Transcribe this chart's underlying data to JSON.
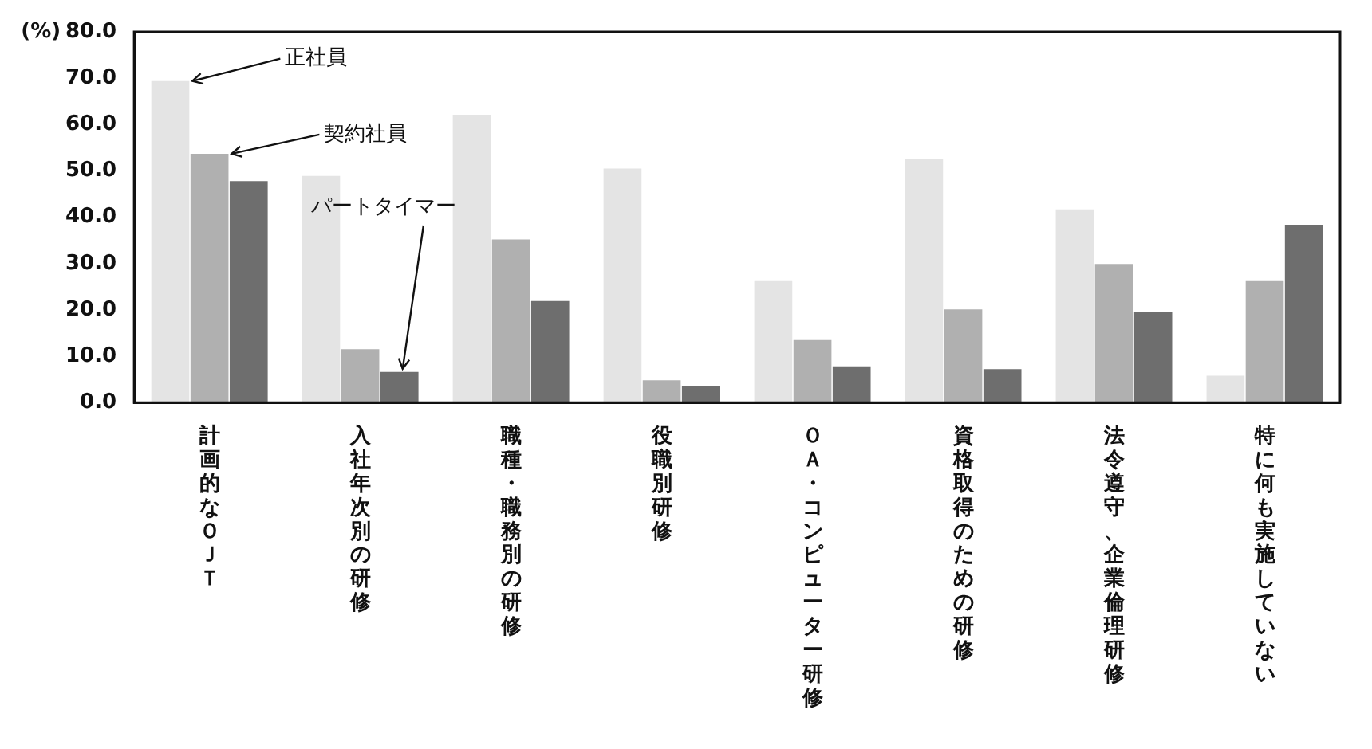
{
  "chart_data": {
    "type": "bar",
    "ylabel": "(%)",
    "categories": [
      "計画的なＯＪＴ",
      "入社年次別の研修",
      "職種・職務別の研修",
      "役職別研修",
      "ＯＡ・コンピューター研修",
      "資格取得のための研修",
      "法令遵守、企業倫理研修",
      "特に何も実施していない"
    ],
    "series": [
      {
        "name": "正社員",
        "color": "#e4e4e4",
        "values": [
          69.4,
          48.9,
          62.1,
          50.5,
          26.2,
          52.5,
          41.7,
          5.8
        ]
      },
      {
        "name": "契約社員",
        "color": "#b0b0b0",
        "values": [
          53.7,
          11.5,
          35.2,
          4.8,
          13.5,
          20.1,
          29.9,
          26.2
        ]
      },
      {
        "name": "パートタイマー",
        "color": "#6e6e6e",
        "values": [
          47.8,
          6.6,
          21.9,
          3.6,
          7.8,
          7.2,
          19.6,
          38.2
        ]
      }
    ],
    "ylim": [
      0,
      80
    ],
    "yticks": [
      {
        "value": 0,
        "label": "0.0"
      },
      {
        "value": 10,
        "label": "10.0"
      },
      {
        "value": 20,
        "label": "20.0"
      },
      {
        "value": 30,
        "label": "30.0"
      },
      {
        "value": 40,
        "label": "40.0"
      },
      {
        "value": 50,
        "label": "50.0"
      },
      {
        "value": 60,
        "label": "60.0"
      },
      {
        "value": 70,
        "label": "70.0"
      },
      {
        "value": 80,
        "label": "80.0"
      }
    ],
    "grid": false,
    "legend": "top left"
  }
}
